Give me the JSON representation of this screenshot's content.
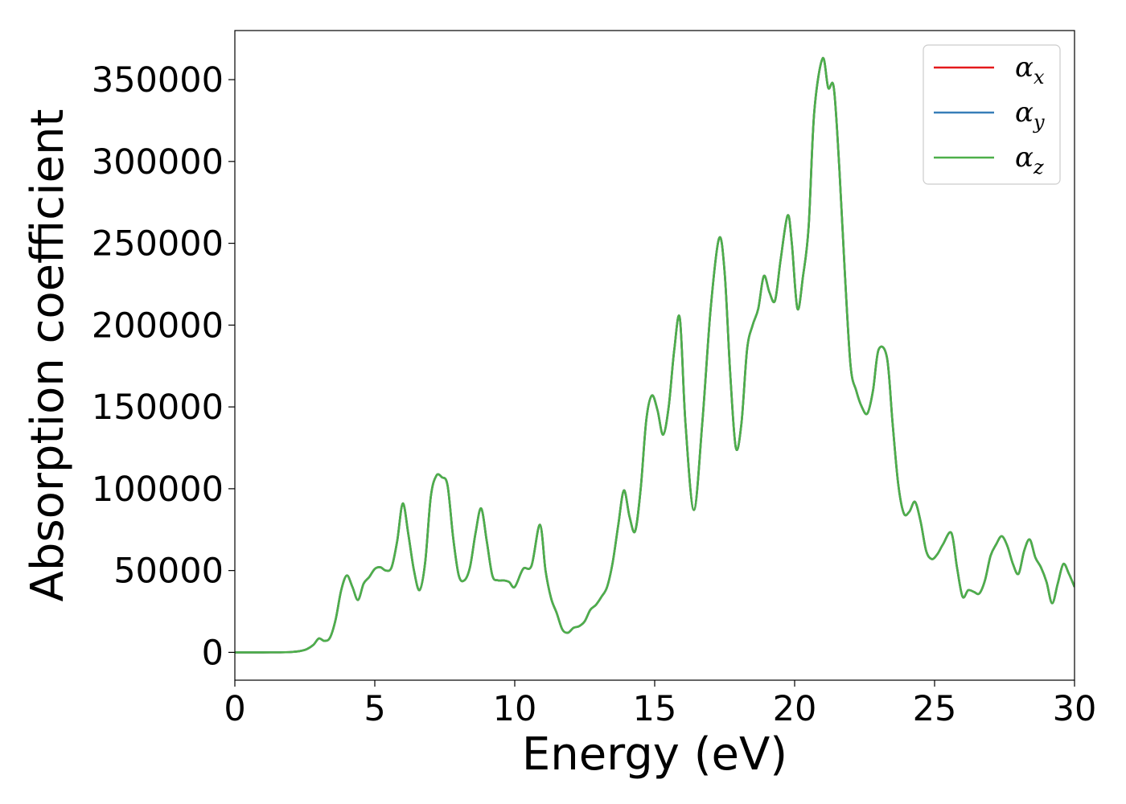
{
  "chart_data": {
    "type": "line",
    "title": "",
    "xlabel": "Energy (eV)",
    "ylabel": "Absorption coefficient",
    "xlim": [
      0,
      30
    ],
    "ylim": [
      -17000,
      380000
    ],
    "xticks": [
      0,
      5,
      10,
      15,
      20,
      25,
      30
    ],
    "yticks": [
      0,
      50000,
      100000,
      150000,
      200000,
      250000,
      300000,
      350000
    ],
    "grid": false,
    "legend_position": "top-right",
    "colors": {
      "alpha_x": "#e41a1c",
      "alpha_y": "#377eb8",
      "alpha_z": "#4daf4a"
    },
    "legend": [
      {
        "symbol": "α",
        "subscript": "x",
        "color": "#e41a1c"
      },
      {
        "symbol": "α",
        "subscript": "y",
        "color": "#377eb8"
      },
      {
        "symbol": "α",
        "subscript": "z",
        "color": "#4daf4a"
      }
    ],
    "x": [
      0,
      1,
      2,
      2.5,
      2.8,
      3.0,
      3.2,
      3.4,
      3.6,
      3.8,
      4.0,
      4.2,
      4.4,
      4.6,
      4.8,
      5.0,
      5.2,
      5.4,
      5.6,
      5.8,
      6.0,
      6.2,
      6.4,
      6.6,
      6.8,
      7.0,
      7.2,
      7.4,
      7.6,
      7.8,
      8.0,
      8.2,
      8.4,
      8.6,
      8.8,
      9.0,
      9.2,
      9.4,
      9.6,
      9.8,
      10.0,
      10.3,
      10.6,
      10.9,
      11.1,
      11.3,
      11.5,
      11.7,
      11.9,
      12.1,
      12.3,
      12.5,
      12.7,
      12.9,
      13.1,
      13.3,
      13.5,
      13.7,
      13.9,
      14.1,
      14.3,
      14.5,
      14.7,
      14.9,
      15.1,
      15.3,
      15.5,
      15.7,
      15.9,
      16.1,
      16.4,
      16.7,
      17.0,
      17.3,
      17.5,
      17.7,
      17.9,
      18.1,
      18.3,
      18.5,
      18.7,
      18.9,
      19.1,
      19.3,
      19.5,
      19.75,
      19.9,
      20.1,
      20.3,
      20.5,
      20.7,
      21.0,
      21.2,
      21.4,
      21.6,
      21.8,
      22.0,
      22.2,
      22.4,
      22.6,
      22.8,
      23.0,
      23.3,
      23.5,
      23.7,
      23.9,
      24.1,
      24.3,
      24.5,
      24.7,
      24.9,
      25.1,
      25.3,
      25.6,
      25.8,
      26.0,
      26.2,
      26.4,
      26.6,
      26.8,
      27.0,
      27.2,
      27.4,
      27.6,
      27.8,
      28.0,
      28.2,
      28.4,
      28.6,
      28.8,
      29.0,
      29.2,
      29.4,
      29.6,
      29.8,
      30.0
    ],
    "series": [
      {
        "name": "αx",
        "values": [
          0,
          0,
          200,
          1500,
          4500,
          8500,
          7000,
          9000,
          20000,
          38000,
          47000,
          40000,
          32000,
          42000,
          46000,
          51000,
          52000,
          50000,
          52000,
          68000,
          91000,
          72000,
          50000,
          38000,
          55000,
          95000,
          108000,
          107000,
          102000,
          70000,
          47000,
          44000,
          52000,
          73000,
          88000,
          68000,
          47000,
          44000,
          44000,
          43000,
          40000,
          51000,
          53000,
          78000,
          50000,
          33000,
          24000,
          14000,
          12000,
          15000,
          16000,
          19000,
          26000,
          29000,
          34000,
          40000,
          55000,
          78000,
          99000,
          83000,
          74000,
          100000,
          142000,
          157000,
          148000,
          133000,
          150000,
          185000,
          204000,
          140000,
          87000,
          140000,
          210000,
          253000,
          232000,
          170000,
          125000,
          140000,
          185000,
          200000,
          210000,
          230000,
          220000,
          215000,
          240000,
          267000,
          250000,
          210000,
          230000,
          260000,
          330000,
          363000,
          345000,
          345000,
          295000,
          230000,
          175000,
          160000,
          150000,
          146000,
          160000,
          185000,
          180000,
          140000,
          103000,
          85000,
          86000,
          92000,
          80000,
          62000,
          57000,
          60000,
          66000,
          73000,
          52000,
          34000,
          38000,
          37000,
          36000,
          44000,
          59000,
          66000,
          71000,
          65000,
          54000,
          48000,
          62000,
          69000,
          58000,
          52000,
          43000,
          30000,
          42000,
          54000,
          48000,
          40000
        ]
      },
      {
        "name": "αy",
        "values": [
          0,
          0,
          200,
          1500,
          4500,
          8500,
          7000,
          9000,
          20000,
          38000,
          47000,
          40000,
          32000,
          42000,
          46000,
          51000,
          52000,
          50000,
          52000,
          68000,
          91000,
          72000,
          50000,
          38000,
          55000,
          95000,
          108000,
          107000,
          102000,
          70000,
          47000,
          44000,
          52000,
          73000,
          88000,
          68000,
          47000,
          44000,
          44000,
          43000,
          40000,
          51000,
          53000,
          78000,
          50000,
          33000,
          24000,
          14000,
          12000,
          15000,
          16000,
          19000,
          26000,
          29000,
          34000,
          40000,
          55000,
          78000,
          99000,
          83000,
          74000,
          100000,
          142000,
          157000,
          148000,
          133000,
          150000,
          185000,
          204000,
          140000,
          87000,
          140000,
          210000,
          253000,
          232000,
          170000,
          125000,
          140000,
          185000,
          200000,
          210000,
          230000,
          220000,
          215000,
          240000,
          267000,
          250000,
          210000,
          230000,
          260000,
          330000,
          363000,
          345000,
          345000,
          295000,
          230000,
          175000,
          160000,
          150000,
          146000,
          160000,
          185000,
          180000,
          140000,
          103000,
          85000,
          86000,
          92000,
          80000,
          62000,
          57000,
          60000,
          66000,
          73000,
          52000,
          34000,
          38000,
          37000,
          36000,
          44000,
          59000,
          66000,
          71000,
          65000,
          54000,
          48000,
          62000,
          69000,
          58000,
          52000,
          43000,
          30000,
          42000,
          54000,
          48000,
          40000
        ]
      },
      {
        "name": "αz",
        "values": [
          0,
          0,
          200,
          1500,
          4500,
          8500,
          7000,
          9000,
          20000,
          38000,
          47000,
          40000,
          32000,
          42000,
          46000,
          51000,
          52000,
          50000,
          52000,
          68000,
          91000,
          72000,
          50000,
          38000,
          55000,
          95000,
          108000,
          107000,
          102000,
          70000,
          47000,
          44000,
          52000,
          73000,
          88000,
          68000,
          47000,
          44000,
          44000,
          43000,
          40000,
          51000,
          53000,
          78000,
          50000,
          33000,
          24000,
          14000,
          12000,
          15000,
          16000,
          19000,
          26000,
          29000,
          34000,
          40000,
          55000,
          78000,
          99000,
          83000,
          74000,
          100000,
          142000,
          157000,
          148000,
          133000,
          150000,
          185000,
          204000,
          140000,
          87000,
          140000,
          210000,
          253000,
          232000,
          170000,
          125000,
          140000,
          185000,
          200000,
          210000,
          230000,
          220000,
          215000,
          240000,
          267000,
          250000,
          210000,
          230000,
          260000,
          330000,
          363000,
          345000,
          345000,
          295000,
          230000,
          175000,
          160000,
          150000,
          146000,
          160000,
          185000,
          180000,
          140000,
          103000,
          85000,
          86000,
          92000,
          80000,
          62000,
          57000,
          60000,
          66000,
          73000,
          52000,
          34000,
          38000,
          37000,
          36000,
          44000,
          59000,
          66000,
          71000,
          65000,
          54000,
          48000,
          62000,
          69000,
          58000,
          52000,
          43000,
          30000,
          42000,
          54000,
          48000,
          40000
        ]
      }
    ]
  }
}
